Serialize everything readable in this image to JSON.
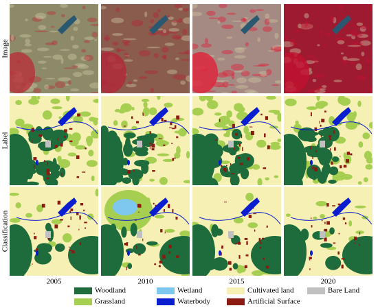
{
  "row_labels": [
    "Image",
    "Label",
    "Classification"
  ],
  "column_labels": [
    "2005",
    "2010",
    "2015",
    "2020"
  ],
  "legend": [
    {
      "label": "Woodland",
      "color": "#1e6b3c"
    },
    {
      "label": "Wetland",
      "color": "#7ec8f0"
    },
    {
      "label": "Cultivated land",
      "color": "#f7f0b4"
    },
    {
      "label": "Bare Land",
      "color": "#c0c0c0"
    },
    {
      "label": "Grassland",
      "color": "#a6cf52"
    },
    {
      "label": "Waterbody",
      "color": "#0a1ecf"
    },
    {
      "label": "Artificial Surface",
      "color": "#8b1a10"
    }
  ]
}
